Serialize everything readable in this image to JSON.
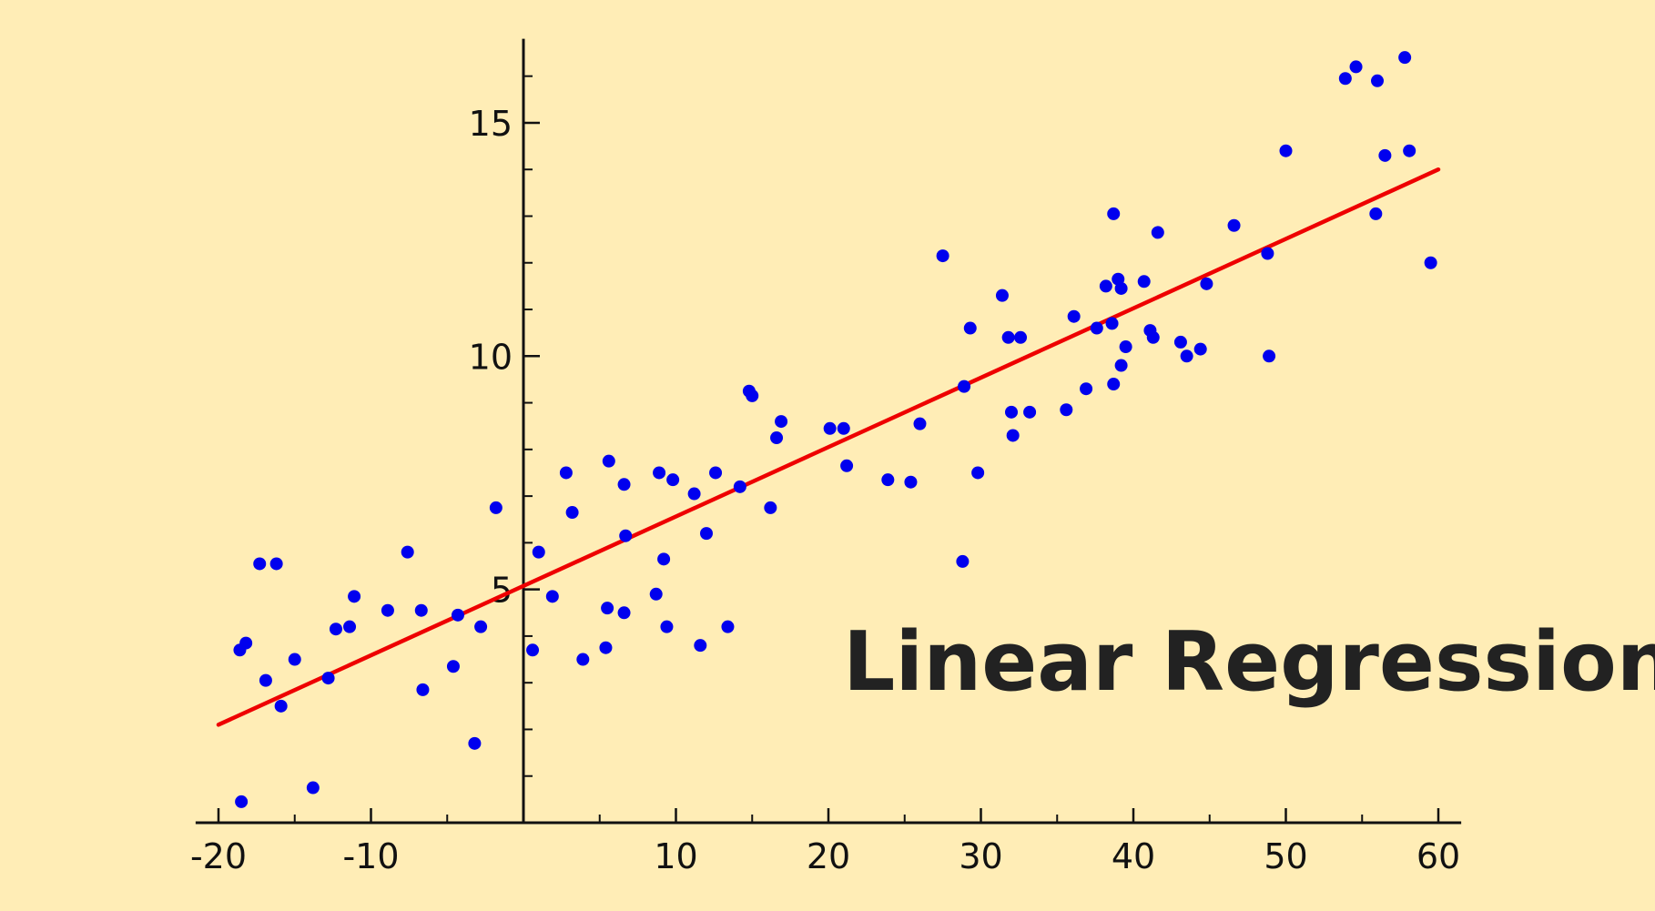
{
  "chart_data": {
    "type": "scatter",
    "title": "",
    "xlabel": "",
    "ylabel": "",
    "xlim": [
      -21.5,
      61.5
    ],
    "ylim": [
      0,
      16.8
    ],
    "x_ticks_major": [
      -20,
      -10,
      10,
      20,
      30,
      40,
      50,
      60
    ],
    "x_ticks_minor": [
      -15,
      -5,
      5,
      15,
      25,
      35,
      45,
      55
    ],
    "y_ticks_major": [
      5,
      10,
      15
    ],
    "y_ticks_minor": [
      1,
      2,
      3,
      4,
      6,
      7,
      8,
      9,
      11,
      12,
      13,
      14,
      16
    ],
    "grid": false,
    "annotation": "Linear Regression",
    "point_color": "#0000EE",
    "line_color": "#EE0000",
    "axis_color": "#111111",
    "fit_line": {
      "x": [
        -20,
        60
      ],
      "y": [
        2.1,
        14.0
      ]
    },
    "points": [
      [
        -18.6,
        3.7
      ],
      [
        -18.2,
        3.85
      ],
      [
        -18.5,
        0.45
      ],
      [
        -17.3,
        5.55
      ],
      [
        -16.9,
        3.05
      ],
      [
        -16.2,
        5.55
      ],
      [
        -15.9,
        2.5
      ],
      [
        -15.0,
        3.5
      ],
      [
        -13.8,
        0.75
      ],
      [
        -12.8,
        3.1
      ],
      [
        -12.3,
        4.15
      ],
      [
        -11.4,
        4.2
      ],
      [
        -11.1,
        4.85
      ],
      [
        -8.9,
        4.55
      ],
      [
        -7.6,
        5.8
      ],
      [
        -6.7,
        4.55
      ],
      [
        -6.6,
        2.85
      ],
      [
        -4.6,
        3.35
      ],
      [
        -4.3,
        4.45
      ],
      [
        -3.2,
        1.7
      ],
      [
        -2.8,
        4.2
      ],
      [
        -1.8,
        6.75
      ],
      [
        0.6,
        3.7
      ],
      [
        1.0,
        5.8
      ],
      [
        1.9,
        4.85
      ],
      [
        2.8,
        7.5
      ],
      [
        3.2,
        6.65
      ],
      [
        3.9,
        3.5
      ],
      [
        5.4,
        3.75
      ],
      [
        5.5,
        4.6
      ],
      [
        5.6,
        7.75
      ],
      [
        6.6,
        4.5
      ],
      [
        6.6,
        7.25
      ],
      [
        6.7,
        6.15
      ],
      [
        8.7,
        4.9
      ],
      [
        8.9,
        7.5
      ],
      [
        9.2,
        5.65
      ],
      [
        9.4,
        4.2
      ],
      [
        9.8,
        7.35
      ],
      [
        11.2,
        7.05
      ],
      [
        11.6,
        3.8
      ],
      [
        12.0,
        6.2
      ],
      [
        12.6,
        7.5
      ],
      [
        13.4,
        4.2
      ],
      [
        14.2,
        7.2
      ],
      [
        14.8,
        9.25
      ],
      [
        15.0,
        9.15
      ],
      [
        16.2,
        6.75
      ],
      [
        16.6,
        8.25
      ],
      [
        16.9,
        8.6
      ],
      [
        20.1,
        8.45
      ],
      [
        21.0,
        8.45
      ],
      [
        21.2,
        7.65
      ],
      [
        23.9,
        7.35
      ],
      [
        25.4,
        7.3
      ],
      [
        26.0,
        8.55
      ],
      [
        27.5,
        12.15
      ],
      [
        28.8,
        5.6
      ],
      [
        28.9,
        9.35
      ],
      [
        29.3,
        10.6
      ],
      [
        29.8,
        7.5
      ],
      [
        31.4,
        11.3
      ],
      [
        31.8,
        10.4
      ],
      [
        32.0,
        8.8
      ],
      [
        32.1,
        8.3
      ],
      [
        32.6,
        10.4
      ],
      [
        33.2,
        8.8
      ],
      [
        35.6,
        8.85
      ],
      [
        36.1,
        10.85
      ],
      [
        36.9,
        9.3
      ],
      [
        37.6,
        10.6
      ],
      [
        38.2,
        11.5
      ],
      [
        38.6,
        10.7
      ],
      [
        38.7,
        13.05
      ],
      [
        38.7,
        9.4
      ],
      [
        39.0,
        11.65
      ],
      [
        39.2,
        9.8
      ],
      [
        39.2,
        11.45
      ],
      [
        39.5,
        10.2
      ],
      [
        40.7,
        11.6
      ],
      [
        41.1,
        10.55
      ],
      [
        41.3,
        10.4
      ],
      [
        41.6,
        12.65
      ],
      [
        43.1,
        10.3
      ],
      [
        43.5,
        10.0
      ],
      [
        44.4,
        10.15
      ],
      [
        44.8,
        11.55
      ],
      [
        46.6,
        12.8
      ],
      [
        48.8,
        12.2
      ],
      [
        48.9,
        10.0
      ],
      [
        50.0,
        14.4
      ],
      [
        53.9,
        15.95
      ],
      [
        54.6,
        16.2
      ],
      [
        55.9,
        13.05
      ],
      [
        56.0,
        15.9
      ],
      [
        56.5,
        14.3
      ],
      [
        57.8,
        16.4
      ],
      [
        58.1,
        14.4
      ],
      [
        59.5,
        12.0
      ]
    ]
  }
}
